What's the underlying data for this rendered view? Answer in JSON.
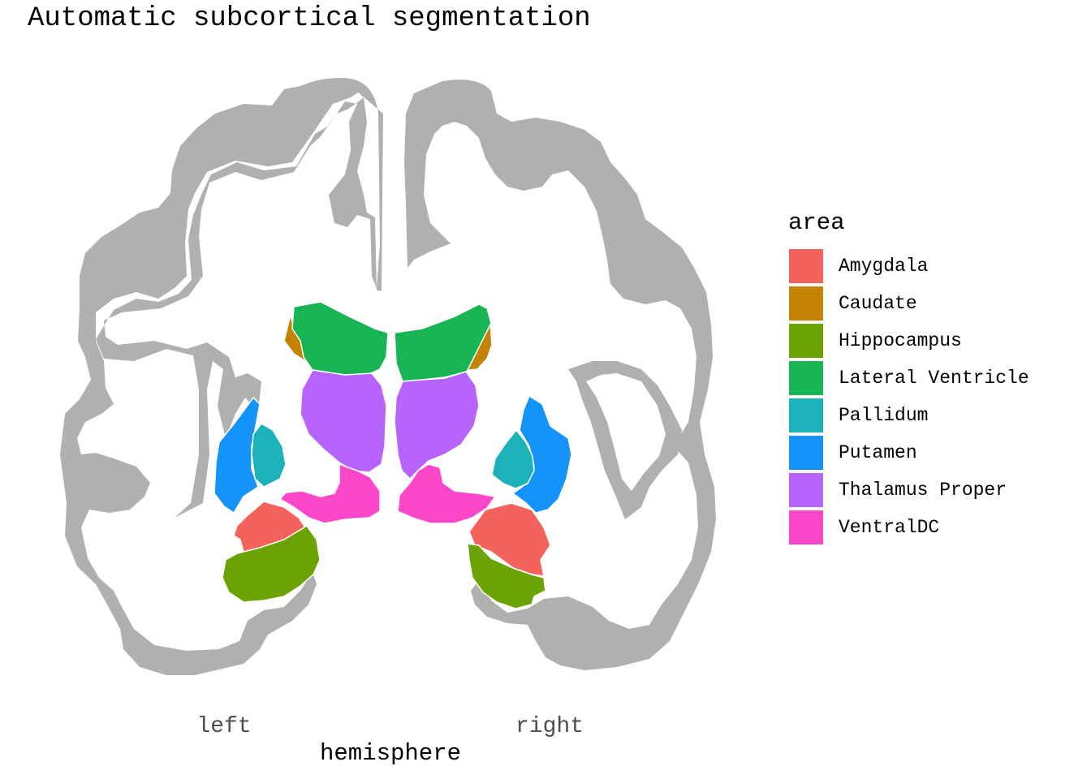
{
  "title": "Automatic subcortical segmentation",
  "x_axis": {
    "label": "hemisphere",
    "ticks": [
      "left",
      "right"
    ]
  },
  "legend": {
    "title": "area",
    "items": [
      {
        "label": "Amygdala",
        "color": "#F8766D"
      },
      {
        "label": "Caudate",
        "color": "#C49A00"
      },
      {
        "label": "Hippocampus",
        "color": "#53B400"
      },
      {
        "label": "Lateral Ventricle",
        "color": "#00C094"
      },
      {
        "label": "Pallidum",
        "color": "#00B6EB"
      },
      {
        "label": "Putamen",
        "color": "#06A4FF"
      },
      {
        "label": "Thalamus Proper",
        "color": "#A58AFF"
      },
      {
        "label": "VentralDC",
        "color": "#FB61D7"
      }
    ]
  },
  "colors": {
    "cortex": "#b0b0b0",
    "amygdala": "#F4635B",
    "caudate": "#C38304",
    "hippocampus": "#6BA204",
    "lateral_ventricle": "#19B555",
    "pallidum": "#1BB3B9",
    "putamen": "#1493FA",
    "thalamus": "#B664FD",
    "ventraldc": "#FB47C8"
  }
}
